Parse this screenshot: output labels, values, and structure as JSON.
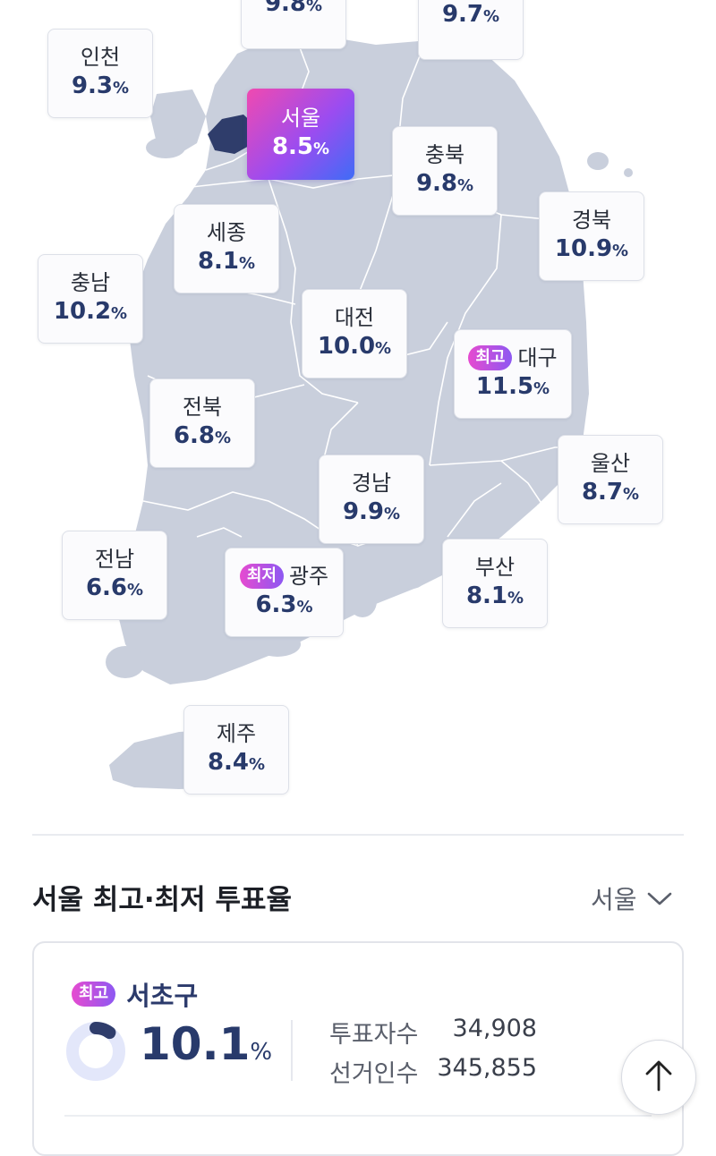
{
  "map": {
    "regions": [
      {
        "id": "gyeonggi",
        "name": "",
        "rate": "9.8",
        "unit": "%"
      },
      {
        "id": "gangwon",
        "name": "",
        "rate": "9.7",
        "unit": "%"
      },
      {
        "id": "incheon",
        "name": "인천",
        "rate": "9.3",
        "unit": "%"
      },
      {
        "id": "seoul",
        "name": "서울",
        "rate": "8.5",
        "unit": "%",
        "selected": true
      },
      {
        "id": "chungbuk",
        "name": "충북",
        "rate": "9.8",
        "unit": "%"
      },
      {
        "id": "gyeongbuk",
        "name": "경북",
        "rate": "10.9",
        "unit": "%"
      },
      {
        "id": "sejong",
        "name": "세종",
        "rate": "8.1",
        "unit": "%"
      },
      {
        "id": "chungnam",
        "name": "충남",
        "rate": "10.2",
        "unit": "%"
      },
      {
        "id": "daejeon",
        "name": "대전",
        "rate": "10.0",
        "unit": "%"
      },
      {
        "id": "daegu",
        "name": "대구",
        "rate": "11.5",
        "unit": "%",
        "tag": "최고"
      },
      {
        "id": "jeonbuk",
        "name": "전북",
        "rate": "6.8",
        "unit": "%"
      },
      {
        "id": "ulsan",
        "name": "울산",
        "rate": "8.7",
        "unit": "%"
      },
      {
        "id": "gyeongnam",
        "name": "경남",
        "rate": "9.9",
        "unit": "%"
      },
      {
        "id": "jeonnam",
        "name": "전남",
        "rate": "6.6",
        "unit": "%"
      },
      {
        "id": "gwangju",
        "name": "광주",
        "rate": "6.3",
        "unit": "%",
        "tag": "최저"
      },
      {
        "id": "busan",
        "name": "부산",
        "rate": "8.1",
        "unit": "%"
      },
      {
        "id": "jeju",
        "name": "제주",
        "rate": "8.4",
        "unit": "%"
      }
    ]
  },
  "section": {
    "title": "서울 최고·최저 투표율",
    "region_select": "서울"
  },
  "result": {
    "tag": "최고",
    "district": "서초구",
    "rate": "10.1",
    "unit": "%",
    "progress": 0.101,
    "voters_label": "투표자수",
    "voters_value": "34,908",
    "electorate_label": "선거인수",
    "electorate_value": "345,855"
  },
  "colors": {
    "map_fill": "#c9cfdc",
    "selected_region": "#2f3d6b",
    "accent_start": "#f04ab0",
    "accent_end": "#3f6cf6",
    "rate_text": "#283a6b"
  },
  "icons": {
    "dropdown": "chevron-down-icon",
    "scroll_top": "arrow-up-icon",
    "progress": "donut-progress-icon"
  }
}
